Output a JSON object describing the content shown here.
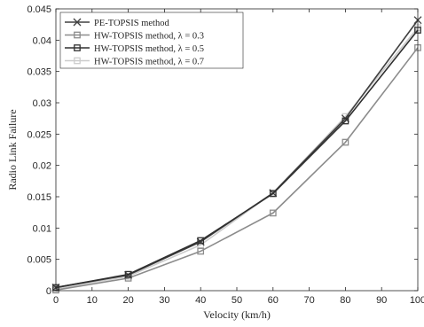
{
  "chart_data": {
    "type": "line",
    "title": "",
    "xlabel": "Velocity (km/h)",
    "ylabel": "Radio Link Failure",
    "xlim": [
      0,
      100
    ],
    "ylim": [
      0,
      0.045
    ],
    "xticks": [
      0,
      10,
      20,
      30,
      40,
      50,
      60,
      70,
      80,
      90,
      100
    ],
    "xtick_labels": [
      "0",
      "10",
      "20",
      "30",
      "40",
      "50",
      "60",
      "70",
      "80",
      "90",
      "100"
    ],
    "yticks": [
      0,
      0.005,
      0.01,
      0.015,
      0.02,
      0.025,
      0.03,
      0.035,
      0.04,
      0.045
    ],
    "ytick_labels": [
      "0",
      "0.005",
      "0.01",
      "0.015",
      "0.02",
      "0.025",
      "0.03",
      "0.035",
      "0.04",
      "0.045"
    ],
    "grid": false,
    "legend_position": "top-left",
    "x": [
      0,
      20,
      40,
      60,
      80,
      100
    ],
    "series": [
      {
        "legend_label": "PE-TOPSIS method",
        "values": [
          0.0005,
          0.0025,
          0.0078,
          0.0156,
          0.0275,
          0.0432
        ],
        "color": "#404040",
        "marker": "x"
      },
      {
        "legend_label": "HW-TOPSIS method, λ = 0.3",
        "values": [
          0.0001,
          0.002,
          0.0063,
          0.0124,
          0.0237,
          0.0388
        ],
        "color": "#8c8c8c",
        "marker": "square"
      },
      {
        "legend_label": "HW-TOPSIS method, λ = 0.5",
        "values": [
          0.0005,
          0.0026,
          0.008,
          0.0155,
          0.0271,
          0.0416
        ],
        "color": "#303030",
        "marker": "square"
      },
      {
        "legend_label": "HW-TOPSIS method, λ = 0.7",
        "values": [
          0.0003,
          0.0023,
          0.0073,
          0.0156,
          0.0278,
          0.042
        ],
        "color": "#cccccc",
        "marker": "square"
      }
    ]
  }
}
